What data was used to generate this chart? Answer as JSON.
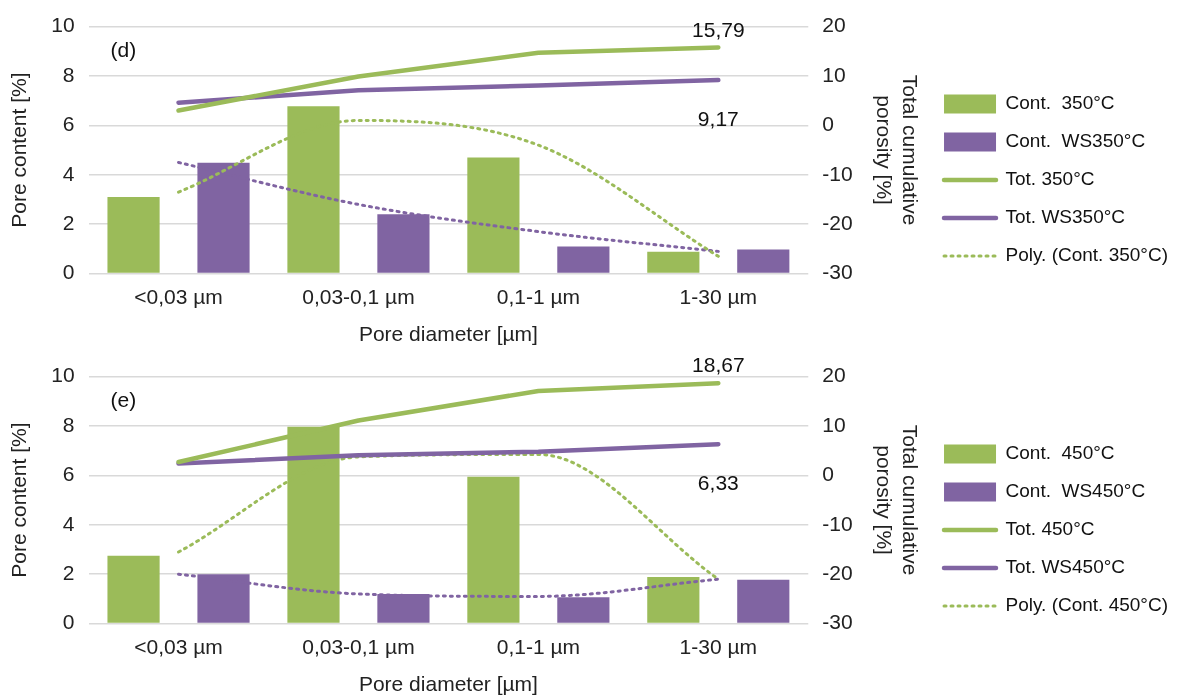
{
  "chart_data": [
    {
      "type": "bar",
      "annotations": [
        "(d)"
      ],
      "xlabel": "Pore diameter [µm]",
      "ylabel": "Pore content [%]",
      "y2label": "Total cumulative porosity [%]",
      "categories": [
        "<0,03 µm",
        "0,03-0,1 µm",
        "0,1-1 µm",
        "1-30 µm"
      ],
      "series": [
        {
          "name": "Cont.  350°C",
          "color": "#9bbb59",
          "values": [
            3.1,
            6.78,
            4.7,
            0.88
          ]
        },
        {
          "name": "Cont.  WS350°C",
          "color": "#8064a2",
          "values": [
            4.49,
            2.4,
            1.1,
            0.98
          ]
        },
        {
          "name": "Tot. 350°C",
          "type": "line",
          "axis": "y2",
          "color": "#9bbb59",
          "values": [
            3.0,
            9.9,
            14.7,
            15.79
          ],
          "value_labels": [
            null,
            null,
            null,
            "15,79"
          ]
        },
        {
          "name": "Tot. WS350°C",
          "type": "line",
          "axis": "y2",
          "color": "#8064a2",
          "values": [
            4.6,
            7.1,
            8.1,
            9.17
          ],
          "value_labels": [
            null,
            null,
            null,
            "9,17"
          ]
        },
        {
          "name": "Poly. (Cont. 350°C)",
          "type": "line",
          "line_style": "dotted",
          "color": "#9bbb59",
          "values": [
            3.3,
            6.2,
            5.2,
            0.7
          ]
        },
        {
          "type": "line",
          "line_style": "dotted",
          "color": "#8064a2",
          "values": [
            4.5,
            2.8,
            1.7,
            0.9
          ]
        }
      ],
      "ylim": [
        0,
        10
      ],
      "yticks": [
        0,
        2,
        4,
        6,
        8,
        10
      ],
      "y2lim": [
        -30,
        20
      ],
      "y2ticks": [
        -30,
        -20,
        -10,
        0,
        10,
        20
      ],
      "grid": "y",
      "legend": "right"
    },
    {
      "type": "bar",
      "annotations": [
        "(e)"
      ],
      "xlabel": "Pore diameter [µm]",
      "ylabel": "Pore content [%]",
      "y2label": "Total cumulative porosity [%]",
      "categories": [
        "<0,03 µm",
        "0,03-0,1 µm",
        "0,1-1 µm",
        "1-30 µm"
      ],
      "series": [
        {
          "name": "Cont.  450°C",
          "color": "#9bbb59",
          "values": [
            2.75,
            7.97,
            5.95,
            1.89
          ]
        },
        {
          "name": "Cont.  WS450°C",
          "color": "#8064a2",
          "values": [
            2.0,
            1.2,
            1.07,
            1.78
          ]
        },
        {
          "name": "Tot. 450°C",
          "type": "line",
          "axis": "y2",
          "color": "#9bbb59",
          "values": [
            2.7,
            11.1,
            17.1,
            18.67
          ],
          "value_labels": [
            null,
            null,
            null,
            "18,67"
          ]
        },
        {
          "name": "Tot. WS450°C",
          "type": "line",
          "axis": "y2",
          "color": "#8064a2",
          "values": [
            2.4,
            4.1,
            4.8,
            6.33
          ],
          "value_labels": [
            null,
            null,
            null,
            "6,33"
          ]
        },
        {
          "name": "Poly. (Cont. 450°C)",
          "type": "line",
          "line_style": "dotted",
          "color": "#9bbb59",
          "values": [
            2.9,
            6.75,
            6.85,
            1.8
          ]
        },
        {
          "type": "line",
          "line_style": "dotted",
          "color": "#8064a2",
          "values": [
            2.0,
            1.2,
            1.1,
            1.8
          ]
        }
      ],
      "ylim": [
        0,
        10
      ],
      "yticks": [
        0,
        2,
        4,
        6,
        8,
        10
      ],
      "y2lim": [
        -30,
        20
      ],
      "y2ticks": [
        -30,
        -20,
        -10,
        0,
        10,
        20
      ],
      "grid": "y",
      "legend": "right"
    }
  ]
}
